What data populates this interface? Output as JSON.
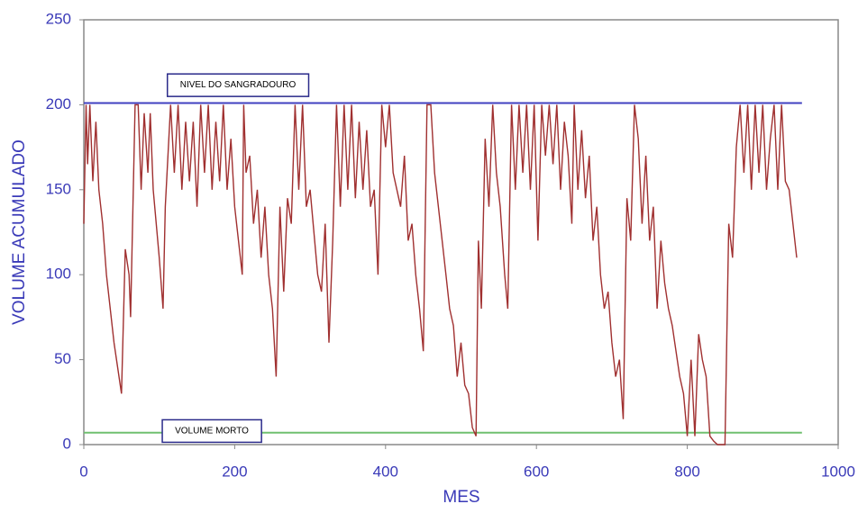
{
  "chart_data": {
    "type": "line",
    "xlabel": "MES",
    "ylabel": "VOLUME ACUMULADO",
    "xlim": [
      0,
      1000
    ],
    "xticks": [
      0,
      200,
      400,
      600,
      800,
      1000
    ],
    "ylim": [
      0,
      250
    ],
    "yticks": [
      0,
      50,
      100,
      150,
      200,
      250
    ],
    "color": "#a03030",
    "reference_lines": [
      {
        "label": "NIVEL DO SANGRADOURO",
        "value": 201,
        "color": "#4040c0"
      },
      {
        "label": "VOLUME MORTO",
        "value": 7,
        "color": "#70c070"
      }
    ],
    "x": [
      0,
      3,
      5,
      8,
      12,
      16,
      20,
      25,
      30,
      40,
      50,
      55,
      60,
      62,
      68,
      72,
      76,
      80,
      85,
      88,
      92,
      100,
      105,
      108,
      115,
      120,
      125,
      130,
      135,
      140,
      145,
      150,
      155,
      160,
      165,
      170,
      175,
      180,
      185,
      190,
      195,
      200,
      205,
      210,
      212,
      215,
      220,
      225,
      230,
      235,
      240,
      245,
      250,
      255,
      260,
      265,
      270,
      275,
      280,
      285,
      290,
      295,
      300,
      310,
      315,
      320,
      325,
      330,
      335,
      340,
      345,
      350,
      355,
      360,
      365,
      370,
      375,
      380,
      385,
      390,
      395,
      400,
      405,
      410,
      420,
      425,
      430,
      435,
      440,
      445,
      450,
      455,
      460,
      465,
      470,
      475,
      480,
      485,
      490,
      495,
      500,
      505,
      510,
      515,
      520,
      523,
      527,
      532,
      537,
      542,
      547,
      552,
      558,
      562,
      567,
      572,
      577,
      582,
      587,
      592,
      597,
      602,
      607,
      612,
      617,
      622,
      627,
      632,
      637,
      642,
      647,
      650,
      655,
      660,
      665,
      670,
      675,
      680,
      685,
      690,
      695,
      700,
      705,
      710,
      715,
      720,
      725,
      730,
      735,
      740,
      745,
      750,
      755,
      760,
      765,
      770,
      775,
      780,
      790,
      795,
      800,
      805,
      810,
      815,
      820,
      825,
      830,
      835,
      840,
      845,
      850,
      855,
      860,
      865,
      870,
      875,
      880,
      885,
      890,
      895,
      900,
      905,
      910,
      915,
      920,
      925,
      930,
      935,
      940,
      945
    ],
    "values": [
      130,
      200,
      165,
      200,
      155,
      190,
      150,
      130,
      100,
      60,
      30,
      115,
      100,
      75,
      200,
      200,
      150,
      195,
      160,
      195,
      150,
      110,
      80,
      140,
      200,
      160,
      200,
      150,
      190,
      155,
      190,
      140,
      200,
      160,
      200,
      150,
      190,
      155,
      200,
      150,
      180,
      140,
      120,
      100,
      200,
      160,
      170,
      130,
      150,
      110,
      140,
      100,
      80,
      40,
      140,
      90,
      145,
      130,
      200,
      150,
      200,
      140,
      150,
      100,
      90,
      130,
      60,
      120,
      200,
      140,
      200,
      150,
      200,
      145,
      190,
      150,
      185,
      140,
      150,
      100,
      200,
      175,
      200,
      160,
      140,
      170,
      120,
      130,
      100,
      80,
      55,
      200,
      200,
      160,
      140,
      120,
      100,
      80,
      70,
      40,
      60,
      35,
      30,
      10,
      5,
      120,
      80,
      180,
      140,
      200,
      160,
      140,
      100,
      80,
      200,
      150,
      200,
      160,
      200,
      150,
      200,
      120,
      200,
      170,
      200,
      165,
      200,
      150,
      190,
      170,
      130,
      200,
      150,
      185,
      145,
      170,
      120,
      140,
      100,
      80,
      90,
      60,
      40,
      50,
      15,
      145,
      120,
      200,
      180,
      130,
      170,
      120,
      140,
      80,
      120,
      95,
      80,
      70,
      40,
      30,
      5,
      50,
      5,
      65,
      50,
      40,
      5,
      2,
      0,
      0,
      0,
      130,
      110,
      175,
      200,
      160,
      200,
      150,
      200,
      160,
      200,
      150,
      180,
      200,
      150,
      200,
      155,
      150,
      130,
      110
    ]
  }
}
